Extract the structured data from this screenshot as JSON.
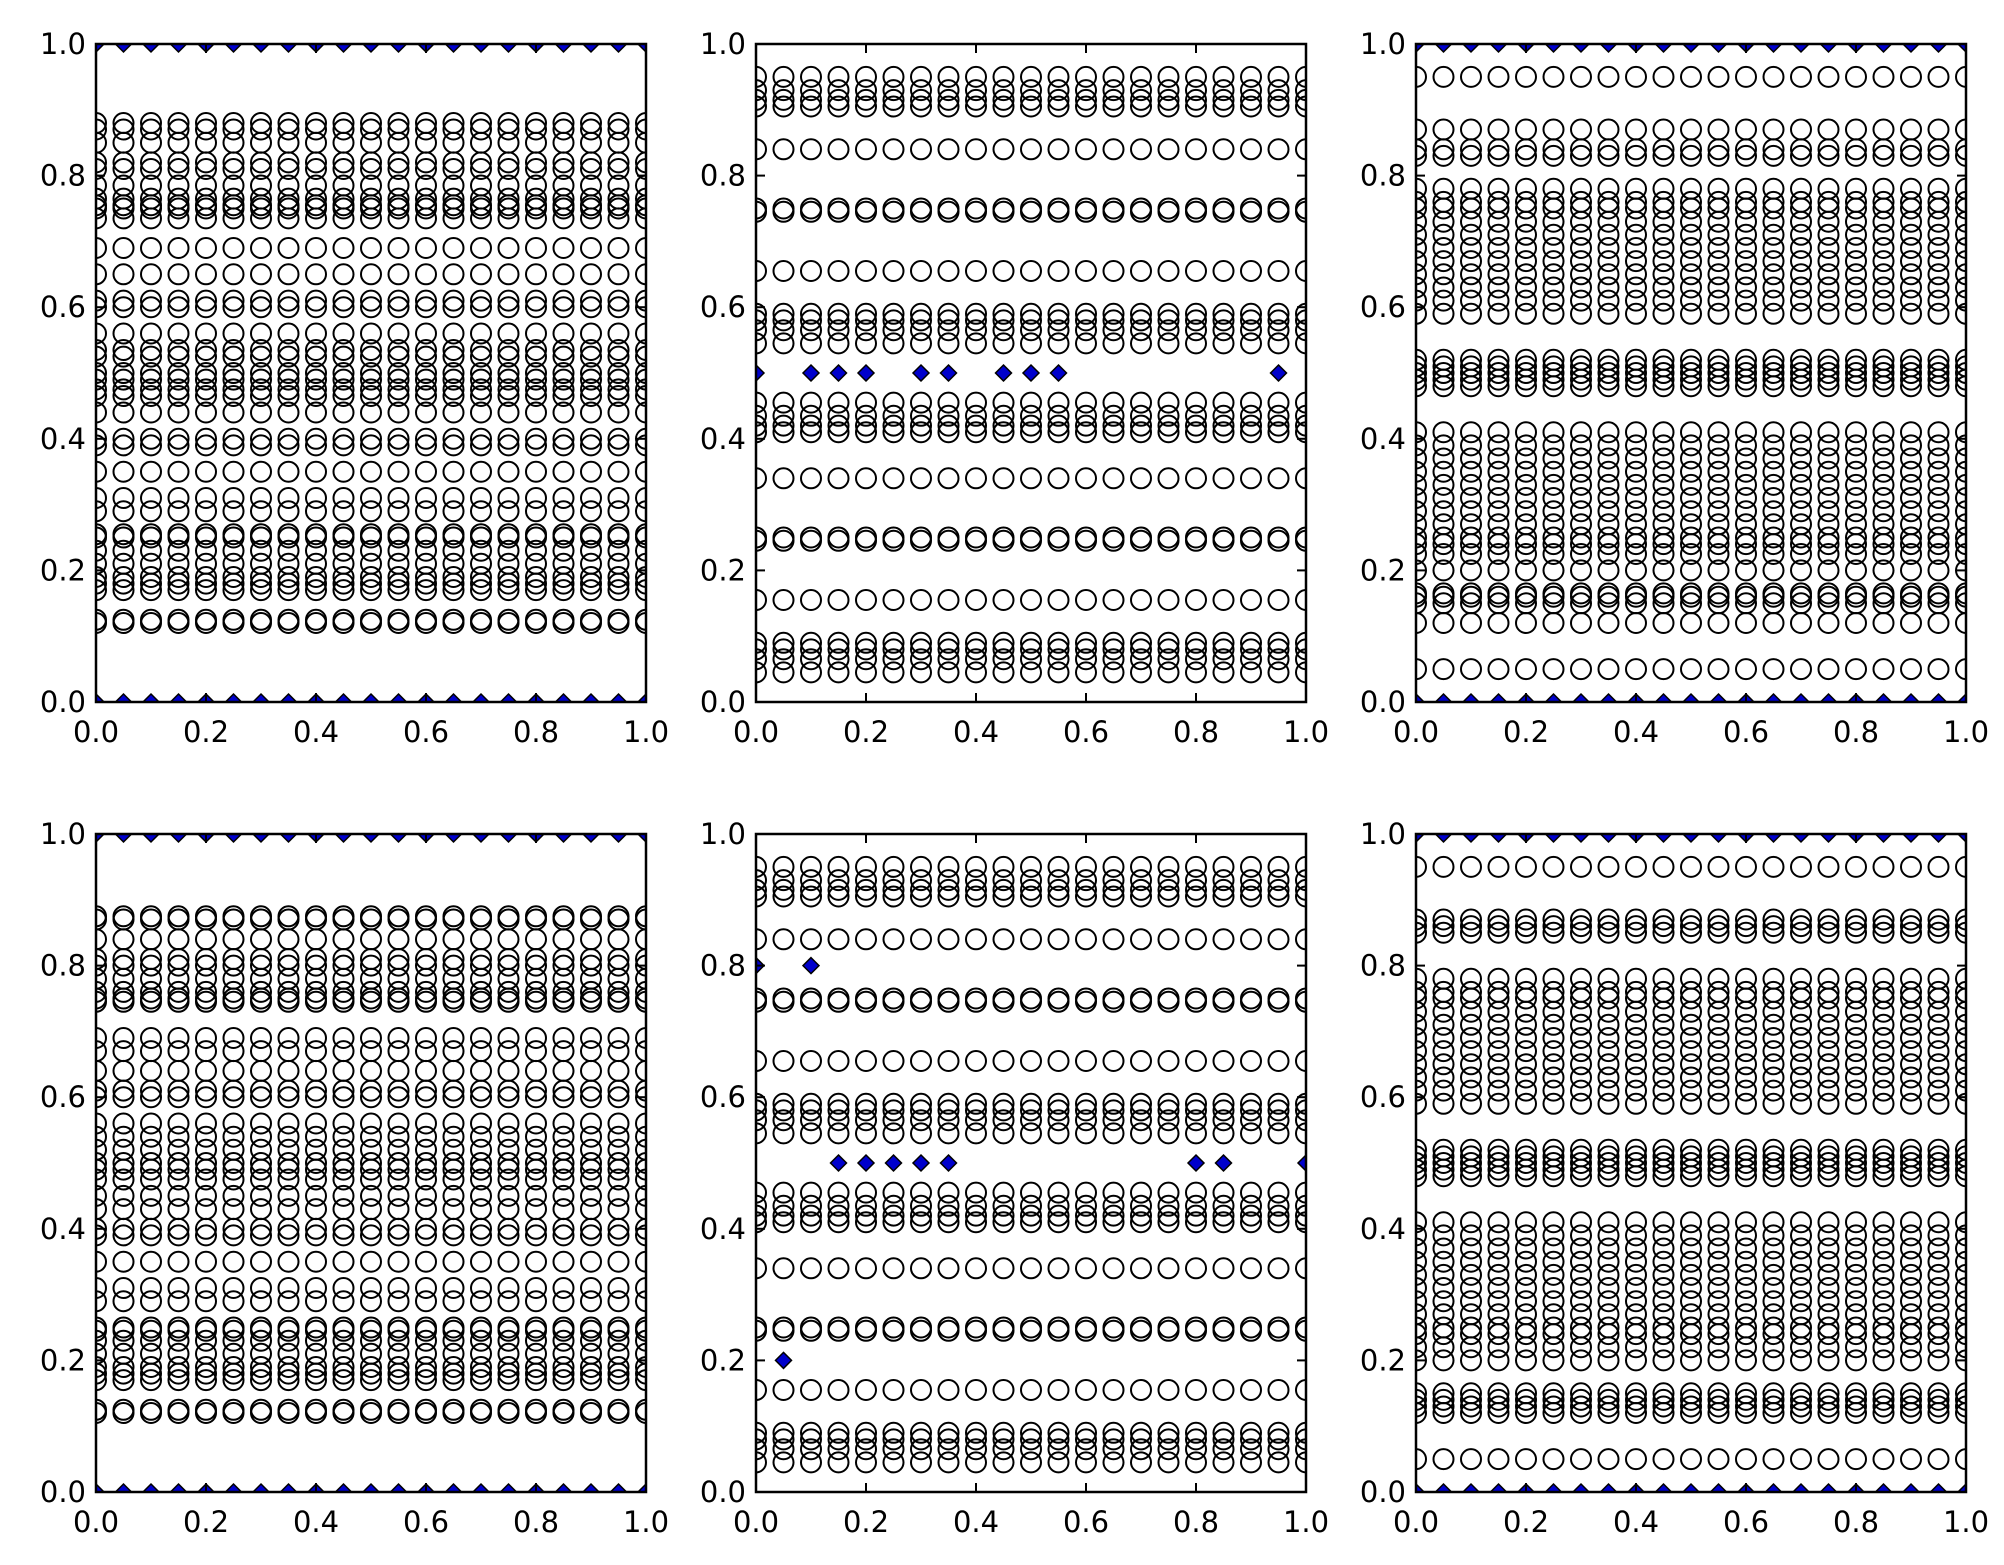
{
  "figure": {
    "rows": 2,
    "cols": 3,
    "background": "#ffffff"
  },
  "style": {
    "open_marker": "open-circle",
    "open_marker_stroke": "#000000",
    "filled_marker": "diamond",
    "filled_marker_fill": "#0000cc",
    "filled_marker_stroke": "#000000",
    "axes_color": "#000000"
  },
  "chart_data": [
    {
      "type": "scatter",
      "panel": "top-left",
      "xlim": [
        0.0,
        1.0
      ],
      "ylim": [
        0.0,
        1.0
      ],
      "xticks": [
        "0.0",
        "0.2",
        "0.4",
        "0.6",
        "0.8",
        "1.0"
      ],
      "yticks": [
        "0.0",
        "0.2",
        "0.4",
        "0.6",
        "0.8",
        "1.0"
      ],
      "grid": false,
      "columns_x": [
        0.0,
        0.05,
        0.1,
        0.15,
        0.2,
        0.25,
        0.3,
        0.35,
        0.4,
        0.45,
        0.5,
        0.55,
        0.6,
        0.65,
        0.7,
        0.75,
        0.8,
        0.85,
        0.9,
        0.95,
        1.0
      ],
      "circle_rows_y": [
        0.12,
        0.125,
        0.17,
        0.18,
        0.19,
        0.21,
        0.23,
        0.25,
        0.255,
        0.29,
        0.31,
        0.35,
        0.39,
        0.4,
        0.44,
        0.465,
        0.475,
        0.49,
        0.5,
        0.525,
        0.535,
        0.56,
        0.6,
        0.61,
        0.65,
        0.69,
        0.735,
        0.75,
        0.755,
        0.765,
        0.785,
        0.81,
        0.82,
        0.85,
        0.87,
        0.88
      ],
      "diamond_rows_y": [
        0.0,
        1.0
      ],
      "diamond_points": []
    },
    {
      "type": "scatter",
      "panel": "top-middle",
      "xlim": [
        0.0,
        1.0
      ],
      "ylim": [
        0.0,
        1.0
      ],
      "xticks": [
        "0.0",
        "0.2",
        "0.4",
        "0.6",
        "0.8",
        "1.0"
      ],
      "yticks": [
        "0.0",
        "0.2",
        "0.4",
        "0.6",
        "0.8",
        "1.0"
      ],
      "grid": false,
      "columns_x": [
        0.0,
        0.05,
        0.1,
        0.15,
        0.2,
        0.25,
        0.3,
        0.35,
        0.4,
        0.45,
        0.5,
        0.55,
        0.6,
        0.65,
        0.7,
        0.75,
        0.8,
        0.85,
        0.9,
        0.95,
        1.0
      ],
      "circle_rows_y": [
        0.045,
        0.065,
        0.08,
        0.09,
        0.155,
        0.245,
        0.25,
        0.34,
        0.41,
        0.42,
        0.435,
        0.455,
        0.545,
        0.565,
        0.58,
        0.59,
        0.655,
        0.745,
        0.75,
        0.84,
        0.905,
        0.915,
        0.93,
        0.95
      ],
      "diamond_rows_y": [],
      "diamond_points": [
        [
          0.0,
          0.5
        ],
        [
          0.1,
          0.5
        ],
        [
          0.15,
          0.5
        ],
        [
          0.2,
          0.5
        ],
        [
          0.3,
          0.5
        ],
        [
          0.35,
          0.5
        ],
        [
          0.45,
          0.5
        ],
        [
          0.5,
          0.5
        ],
        [
          0.55,
          0.5
        ],
        [
          0.95,
          0.5
        ]
      ]
    },
    {
      "type": "scatter",
      "panel": "top-right",
      "xlim": [
        0.0,
        1.0
      ],
      "ylim": [
        0.0,
        1.0
      ],
      "xticks": [
        "0.0",
        "0.2",
        "0.4",
        "0.6",
        "0.8",
        "1.0"
      ],
      "yticks": [
        "0.0",
        "0.2",
        "0.4",
        "0.6",
        "0.8",
        "1.0"
      ],
      "grid": false,
      "columns_x": [
        0.0,
        0.05,
        0.1,
        0.15,
        0.2,
        0.25,
        0.3,
        0.35,
        0.4,
        0.45,
        0.5,
        0.55,
        0.6,
        0.65,
        0.7,
        0.75,
        0.8,
        0.85,
        0.9,
        0.95,
        1.0
      ],
      "circle_rows_y": [
        0.05,
        0.12,
        0.15,
        0.16,
        0.165,
        0.2,
        0.225,
        0.24,
        0.25,
        0.27,
        0.29,
        0.31,
        0.33,
        0.35,
        0.37,
        0.39,
        0.41,
        0.48,
        0.49,
        0.5,
        0.51,
        0.52,
        0.59,
        0.61,
        0.63,
        0.65,
        0.67,
        0.69,
        0.71,
        0.73,
        0.75,
        0.76,
        0.78,
        0.83,
        0.84,
        0.87,
        0.95
      ],
      "diamond_rows_y": [
        0.0,
        1.0
      ],
      "diamond_points": []
    },
    {
      "type": "scatter",
      "panel": "bottom-left",
      "xlim": [
        0.0,
        1.0
      ],
      "ylim": [
        0.0,
        1.0
      ],
      "xticks": [
        "0.0",
        "0.2",
        "0.4",
        "0.6",
        "0.8",
        "1.0"
      ],
      "yticks": [
        "0.0",
        "0.2",
        "0.4",
        "0.6",
        "0.8",
        "1.0"
      ],
      "grid": false,
      "columns_x": [
        0.0,
        0.05,
        0.1,
        0.15,
        0.2,
        0.25,
        0.3,
        0.35,
        0.4,
        0.45,
        0.5,
        0.55,
        0.6,
        0.65,
        0.7,
        0.75,
        0.8,
        0.85,
        0.9,
        0.95,
        1.0
      ],
      "circle_rows_y": [
        0.12,
        0.125,
        0.17,
        0.18,
        0.19,
        0.21,
        0.23,
        0.245,
        0.25,
        0.29,
        0.31,
        0.35,
        0.39,
        0.4,
        0.43,
        0.45,
        0.475,
        0.49,
        0.5,
        0.52,
        0.54,
        0.56,
        0.6,
        0.61,
        0.64,
        0.67,
        0.69,
        0.745,
        0.75,
        0.76,
        0.78,
        0.8,
        0.81,
        0.84,
        0.87,
        0.875
      ],
      "diamond_rows_y": [
        0.0,
        1.0
      ],
      "diamond_points": []
    },
    {
      "type": "scatter",
      "panel": "bottom-middle",
      "xlim": [
        0.0,
        1.0
      ],
      "ylim": [
        0.0,
        1.0
      ],
      "xticks": [
        "0.0",
        "0.2",
        "0.4",
        "0.6",
        "0.8",
        "1.0"
      ],
      "yticks": [
        "0.0",
        "0.2",
        "0.4",
        "0.6",
        "0.8",
        "1.0"
      ],
      "grid": false,
      "columns_x": [
        0.0,
        0.05,
        0.1,
        0.15,
        0.2,
        0.25,
        0.3,
        0.35,
        0.4,
        0.45,
        0.5,
        0.55,
        0.6,
        0.65,
        0.7,
        0.75,
        0.8,
        0.85,
        0.9,
        0.95,
        1.0
      ],
      "circle_rows_y": [
        0.045,
        0.065,
        0.08,
        0.09,
        0.155,
        0.245,
        0.25,
        0.34,
        0.41,
        0.42,
        0.435,
        0.455,
        0.545,
        0.565,
        0.58,
        0.59,
        0.655,
        0.745,
        0.75,
        0.84,
        0.905,
        0.915,
        0.93,
        0.95
      ],
      "diamond_rows_y": [],
      "diamond_points": [
        [
          0.0,
          0.8
        ],
        [
          0.1,
          0.8
        ],
        [
          0.05,
          0.2
        ],
        [
          0.15,
          0.5
        ],
        [
          0.2,
          0.5
        ],
        [
          0.25,
          0.5
        ],
        [
          0.3,
          0.5
        ],
        [
          0.35,
          0.5
        ],
        [
          0.8,
          0.5
        ],
        [
          0.85,
          0.5
        ],
        [
          1.0,
          0.5
        ]
      ]
    },
    {
      "type": "scatter",
      "panel": "bottom-right",
      "xlim": [
        0.0,
        1.0
      ],
      "ylim": [
        0.0,
        1.0
      ],
      "xticks": [
        "0.0",
        "0.2",
        "0.4",
        "0.6",
        "0.8",
        "1.0"
      ],
      "yticks": [
        "0.0",
        "0.2",
        "0.4",
        "0.6",
        "0.8",
        "1.0"
      ],
      "grid": false,
      "columns_x": [
        0.0,
        0.05,
        0.1,
        0.15,
        0.2,
        0.25,
        0.3,
        0.35,
        0.4,
        0.45,
        0.5,
        0.55,
        0.6,
        0.65,
        0.7,
        0.75,
        0.8,
        0.85,
        0.9,
        0.95,
        1.0
      ],
      "circle_rows_y": [
        0.05,
        0.12,
        0.13,
        0.14,
        0.15,
        0.2,
        0.22,
        0.24,
        0.25,
        0.27,
        0.29,
        0.31,
        0.33,
        0.35,
        0.37,
        0.39,
        0.41,
        0.48,
        0.49,
        0.5,
        0.51,
        0.52,
        0.59,
        0.61,
        0.63,
        0.65,
        0.67,
        0.69,
        0.71,
        0.73,
        0.75,
        0.76,
        0.78,
        0.85,
        0.86,
        0.87,
        0.95
      ],
      "diamond_rows_y": [
        0.0,
        1.0
      ],
      "diamond_points": []
    }
  ]
}
